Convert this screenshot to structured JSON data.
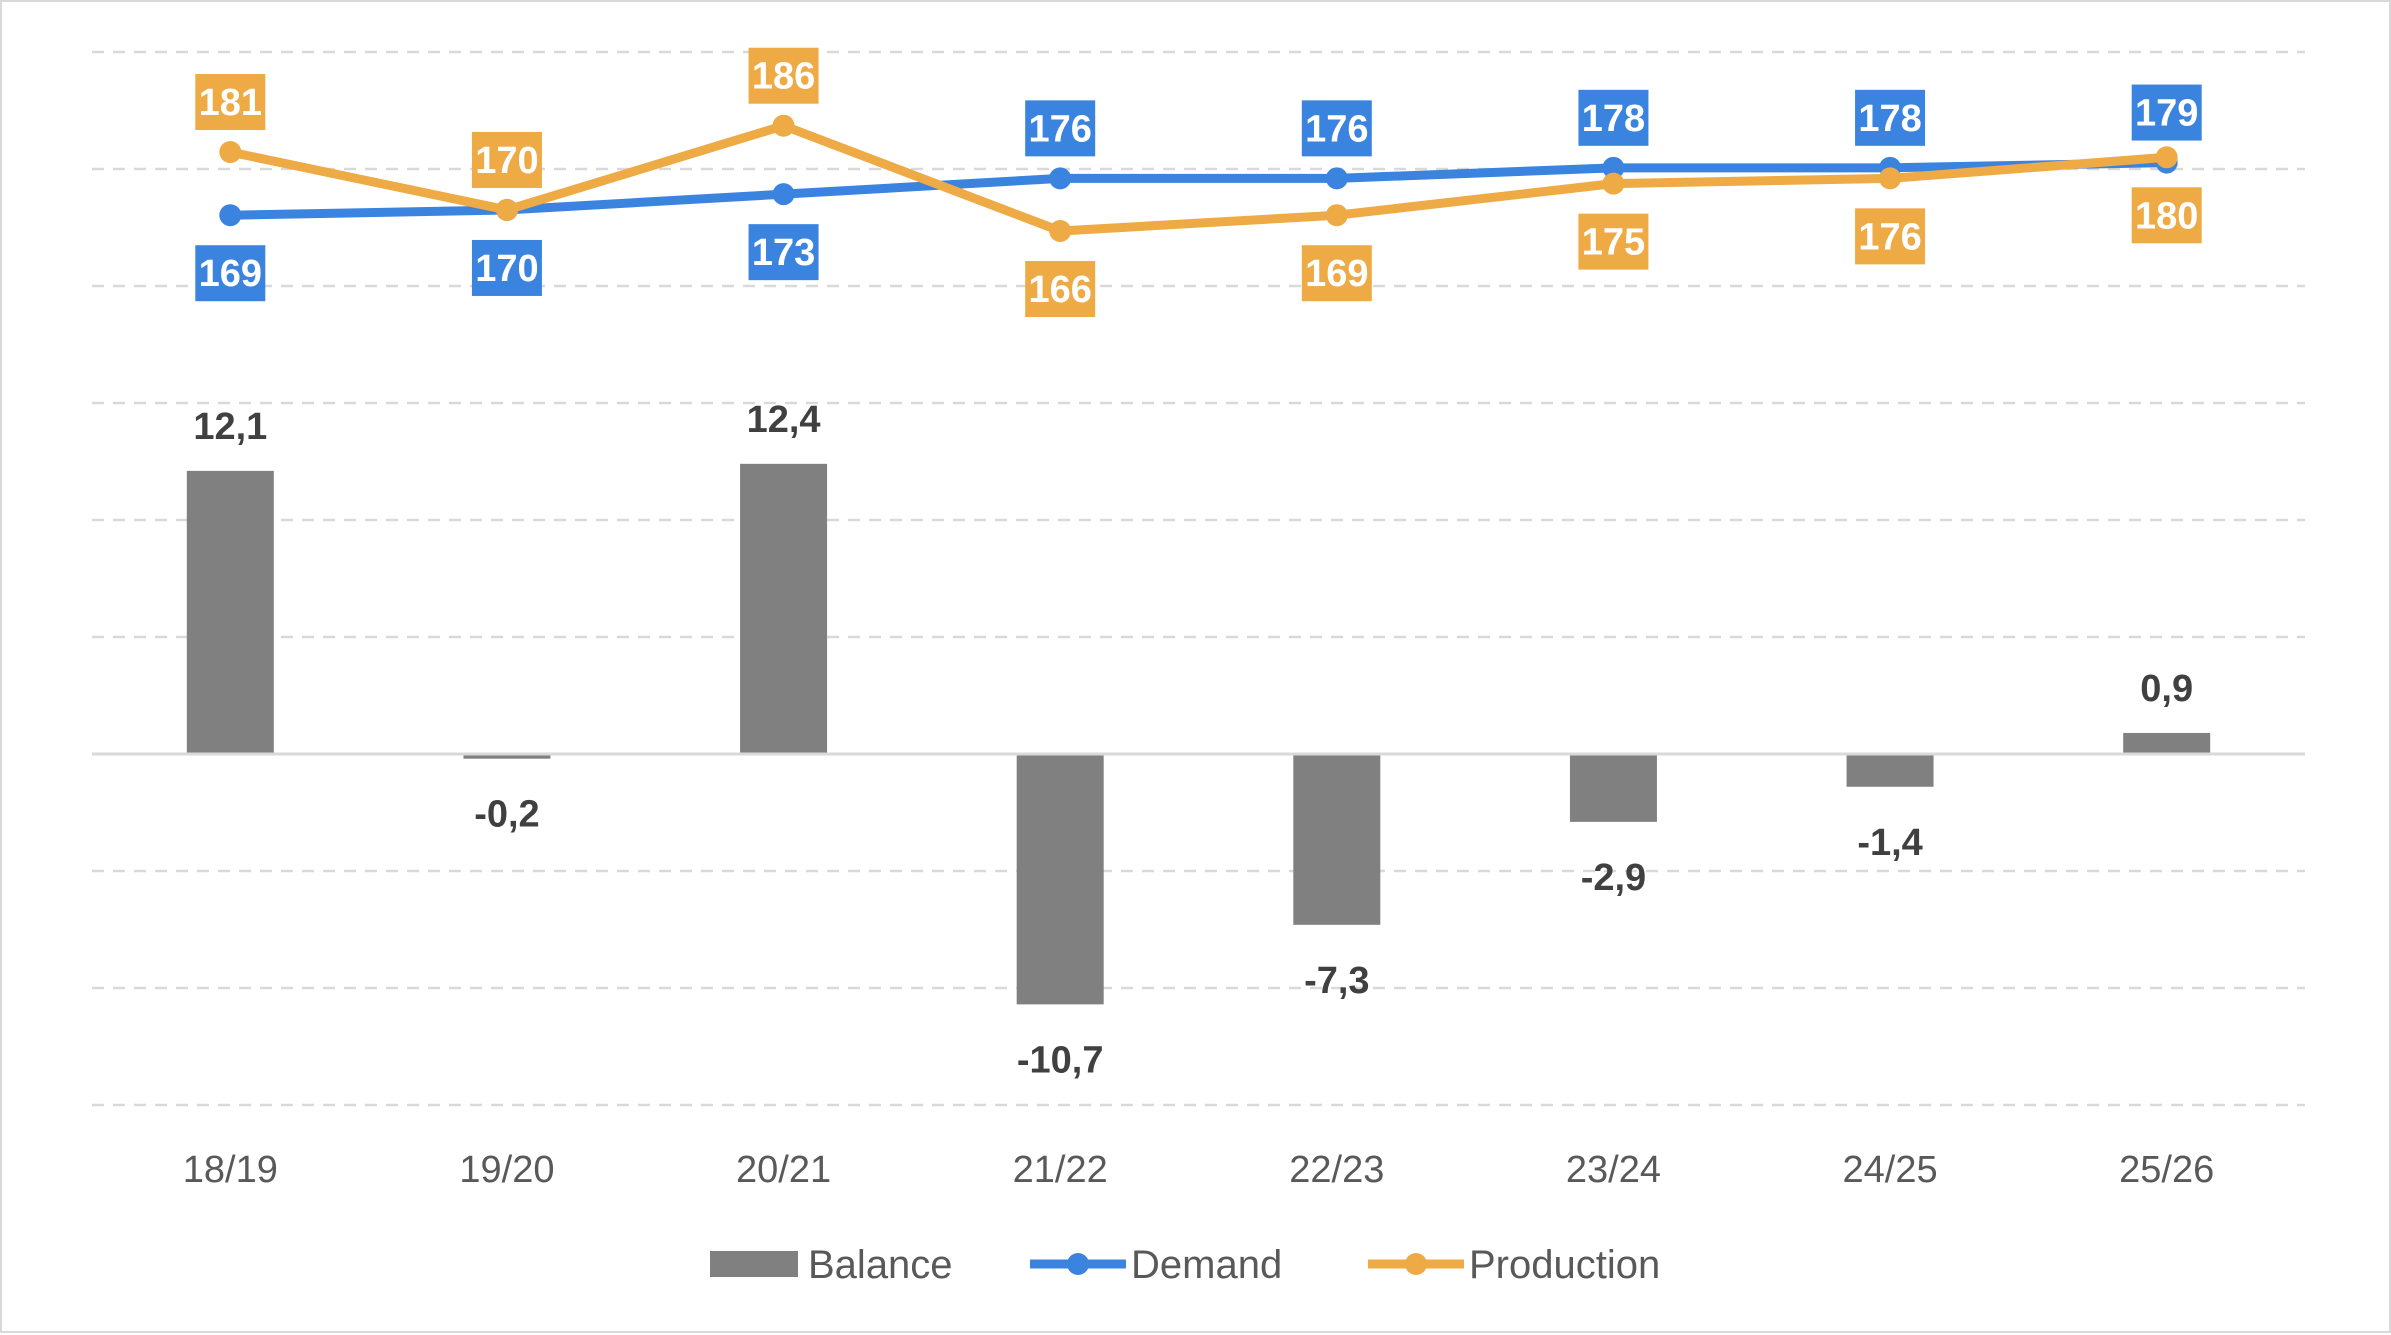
{
  "chart_data": {
    "type": "bar+line",
    "categories": [
      "18/19",
      "19/20",
      "20/21",
      "21/22",
      "22/23",
      "23/24",
      "24/25",
      "25/26"
    ],
    "series": [
      {
        "name": "Balance",
        "type": "bar",
        "axis": "primary",
        "color": "#808080",
        "values": [
          12.1,
          -0.2,
          12.4,
          -10.7,
          -7.3,
          -2.9,
          -1.4,
          0.9
        ],
        "labels": [
          "12,1",
          "-0,2",
          "12,4",
          "-10,7",
          "-7,3",
          "-2,9",
          "-1,4",
          "0,9"
        ]
      },
      {
        "name": "Demand",
        "type": "line",
        "axis": "secondary",
        "color": "#3a84e0",
        "values": [
          169,
          170,
          173,
          176,
          176,
          178,
          178,
          179
        ],
        "labels": [
          "169",
          "170",
          "173",
          "176",
          "176",
          "178",
          "178",
          "179"
        ]
      },
      {
        "name": "Production",
        "type": "line",
        "axis": "secondary",
        "color": "#eeaa44",
        "values": [
          181,
          170,
          186,
          166,
          169,
          175,
          176,
          180
        ],
        "labels": [
          "181",
          "170",
          "186",
          "166",
          "169",
          "175",
          "176",
          "180"
        ]
      }
    ],
    "ylim": [
      -15,
      30
    ],
    "y2lim": [
      0,
      200
    ],
    "grid": true,
    "legend": "bottom",
    "title": "",
    "xlabel": "",
    "ylabel": ""
  }
}
